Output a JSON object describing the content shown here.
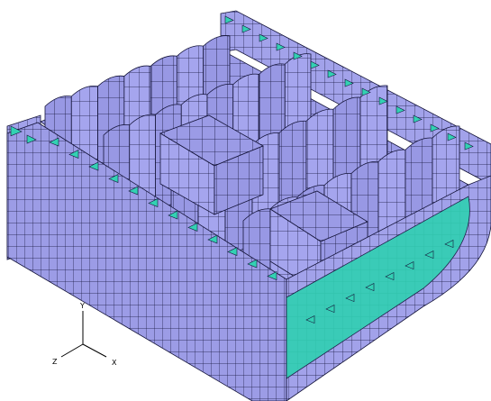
{
  "colors": {
    "background": "#ffffff",
    "plate": "#9b9be6",
    "plate_dark": "#8585d4",
    "plate_side": "#a4a4ec",
    "stiffener": "#33d1b3",
    "stiffener_dark": "#1fae95",
    "mesh_line": "#14143a",
    "highlight": "#c9e84a"
  },
  "triad": {
    "y_label": "Y",
    "z_label": "Z",
    "x_label": "X"
  }
}
